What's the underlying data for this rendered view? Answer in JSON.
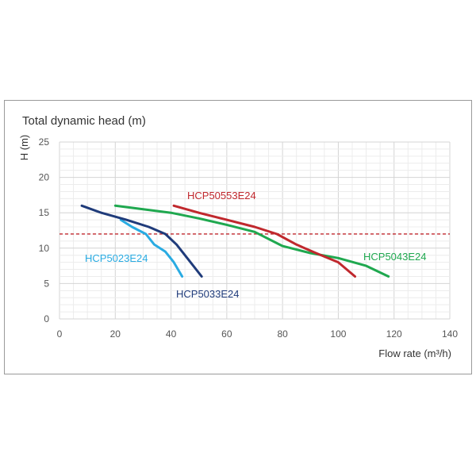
{
  "chart_data": {
    "type": "line",
    "title": "Total dynamic head (m)",
    "xlabel": "Flow rate (m³/h)",
    "ylabel": "H (m)",
    "xlim": [
      0,
      140
    ],
    "ylim": [
      0,
      25
    ],
    "xticks": [
      "0",
      "20",
      "40",
      "60",
      "80",
      "100",
      "120",
      "140"
    ],
    "yticks": [
      "0",
      "5",
      "10",
      "15",
      "20",
      "25"
    ],
    "grid": true,
    "reference_line": {
      "y": 12,
      "color": "#c0282d",
      "style": "dashed"
    },
    "series": [
      {
        "name": "HCP5023E24",
        "color": "#29abe2",
        "points": [
          [
            22,
            14
          ],
          [
            26,
            13
          ],
          [
            31,
            12
          ],
          [
            34,
            10.5
          ],
          [
            38,
            9.5
          ],
          [
            41,
            8
          ],
          [
            44,
            6
          ]
        ]
      },
      {
        "name": "HCP5033E24",
        "color": "#1f3b7a",
        "points": [
          [
            8,
            16
          ],
          [
            15,
            15
          ],
          [
            24,
            14
          ],
          [
            32,
            13
          ],
          [
            38,
            12
          ],
          [
            42,
            10.5
          ],
          [
            46,
            8.5
          ],
          [
            51,
            6
          ]
        ]
      },
      {
        "name": "HCP5043E24",
        "color": "#1fa84f",
        "points": [
          [
            20,
            16
          ],
          [
            30,
            15.5
          ],
          [
            40,
            15
          ],
          [
            50,
            14.2
          ],
          [
            60,
            13.3
          ],
          [
            70,
            12.3
          ],
          [
            80,
            10.3
          ],
          [
            90,
            9.3
          ],
          [
            100,
            8.6
          ],
          [
            110,
            7.5
          ],
          [
            118,
            6
          ]
        ]
      },
      {
        "name": "HCP50553E24",
        "color": "#c0282d",
        "points": [
          [
            41,
            16
          ],
          [
            50,
            15
          ],
          [
            60,
            14
          ],
          [
            70,
            13
          ],
          [
            78,
            12
          ],
          [
            85,
            10.5
          ],
          [
            92,
            9.3
          ],
          [
            100,
            8
          ],
          [
            106,
            6
          ]
        ]
      }
    ]
  }
}
